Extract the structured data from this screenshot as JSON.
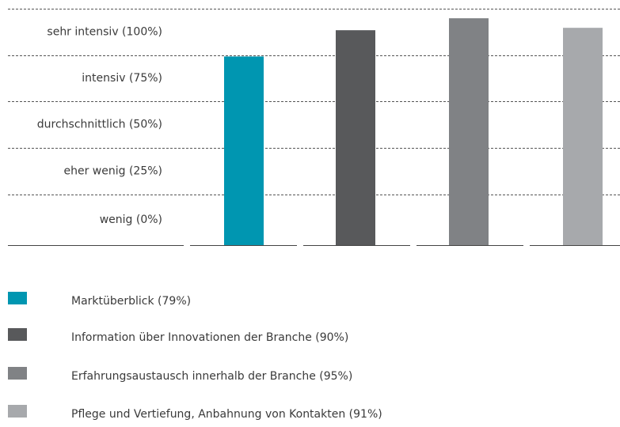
{
  "chart_data": {
    "type": "bar",
    "y_levels": [
      "sehr intensiv (100%)",
      "intensiv (75%)",
      "durchschnittlich (50%)",
      "eher wenig (25%)",
      "wenig (0%)"
    ],
    "ylim": [
      0,
      100
    ],
    "series": [
      {
        "name": "Marktüberblick (79%)",
        "color": "#0096b1",
        "values": [
          79
        ]
      },
      {
        "name": "Information über Innovationen der Branche (90%)",
        "color": "#58595b",
        "values": [
          90
        ]
      },
      {
        "name": "Erfahrungsaustausch innerhalb der Branche (95%)",
        "color": "#808285",
        "values": [
          95
        ]
      },
      {
        "name": "Pflege und Vertiefung, Anbahnung von Kontakten (91%)",
        "color": "#a7a9ac",
        "values": [
          91
        ]
      }
    ]
  }
}
